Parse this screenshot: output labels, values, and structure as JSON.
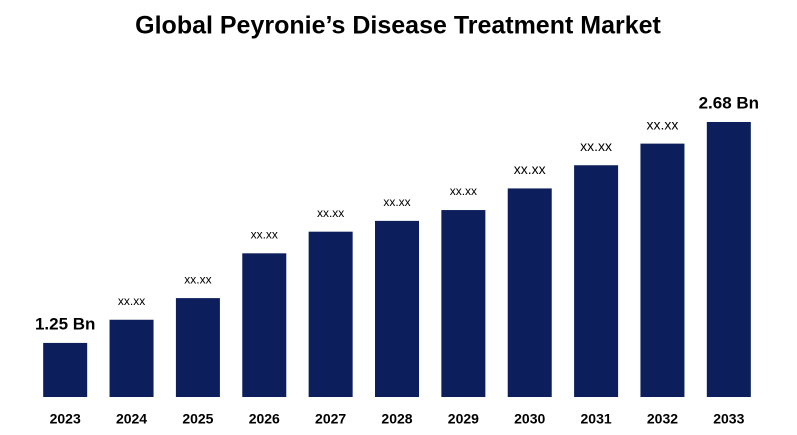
{
  "chart_data": {
    "type": "bar",
    "title": "Global Peyronie’s Disease Treatment Market",
    "categories": [
      "2023",
      "2024",
      "2025",
      "2026",
      "2027",
      "2028",
      "2029",
      "2030",
      "2031",
      "2032",
      "2033"
    ],
    "values": [
      1.25,
      1.4,
      1.54,
      1.83,
      1.97,
      2.04,
      2.11,
      2.25,
      2.4,
      2.54,
      2.68
    ],
    "value_labels": [
      "1.25 Bn",
      "xx.xx",
      "xx.xx",
      "xx.xx",
      "xx.xx",
      "xx.xx",
      "xx.xx",
      "xx.xx",
      "xx.xx",
      "xx.xx",
      "2.68 Bn"
    ],
    "color": "#0c1f5c",
    "ylim": [
      0.9,
      2.9
    ]
  }
}
